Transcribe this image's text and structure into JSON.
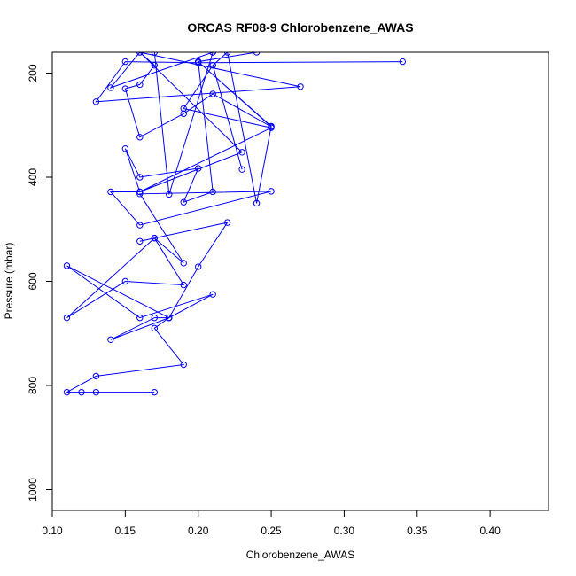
{
  "chart_data": {
    "type": "line",
    "title": "ORCAS RF08-9 Chlorobenzene_AWAS",
    "xlabel": "Chlorobenzene_AWAS",
    "ylabel": "Pressure (mbar)",
    "xlim": [
      0.1,
      0.44
    ],
    "ylim": [
      1040,
      160
    ],
    "y_reversed": true,
    "x_ticks": [
      "0.10",
      "0.15",
      "0.20",
      "0.25",
      "0.30",
      "0.35",
      "0.40"
    ],
    "y_ticks": [
      "200",
      "400",
      "600",
      "800",
      "1000"
    ],
    "grid": false,
    "legend": "none",
    "series_color": "#0000ff",
    "series": [
      {
        "x": [
          0.17,
          0.13,
          0.12,
          0.11,
          0.13,
          0.19,
          0.17,
          0.18,
          0.14,
          0.17,
          0.18,
          0.21,
          0.16,
          0.11,
          0.18,
          0.2,
          0.22,
          0.16,
          0.17,
          0.11,
          0.15,
          0.19,
          0.17,
          0.19,
          0.16,
          0.25,
          0.16,
          0.14,
          0.16,
          0.15,
          0.16,
          0.2,
          0.19,
          0.21,
          0.2,
          0.25,
          0.21,
          0.19,
          0.16,
          0.15,
          0.16,
          0.17,
          0.16,
          0.23,
          0.16,
          0.25,
          0.19,
          0.21,
          0.23,
          0.21,
          0.22,
          0.24,
          0.25,
          0.2,
          0.24,
          0.17,
          0.18,
          0.21,
          0.21,
          0.14,
          0.16,
          0.27,
          0.13,
          0.15,
          0.2,
          0.34
        ],
        "y": [
          813,
          813,
          813,
          813,
          782,
          760,
          690,
          670,
          712,
          670,
          670,
          625,
          670,
          570,
          670,
          572,
          487,
          523,
          517,
          670,
          600,
          607,
          517,
          565,
          432,
          427,
          492,
          428,
          428,
          345,
          400,
          383,
          448,
          428,
          178,
          303,
          240,
          278,
          323,
          230,
          222,
          185,
          160,
          352,
          428,
          305,
          268,
          185,
          385,
          185,
          160,
          450,
          302,
          178,
          160,
          160,
          433,
          160,
          160,
          228,
          160,
          226,
          255,
          178,
          180,
          178
        ]
      }
    ]
  }
}
